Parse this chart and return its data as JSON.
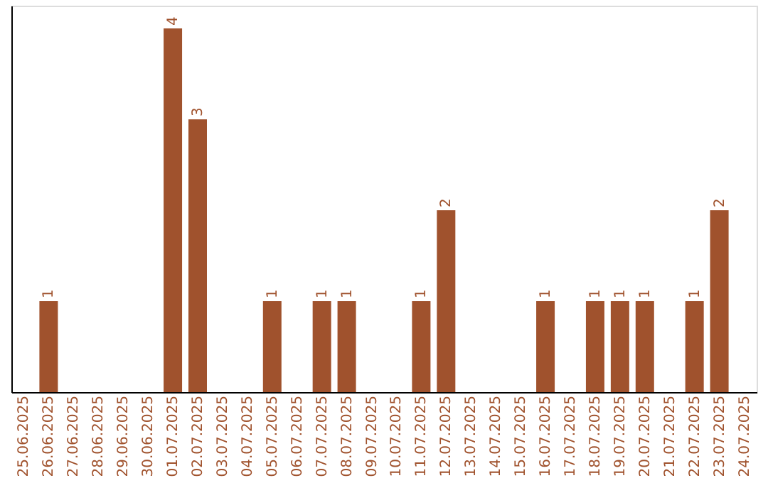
{
  "chart_data": {
    "type": "bar",
    "categories": [
      "25.06.2025",
      "26.06.2025",
      "27.06.2025",
      "28.06.2025",
      "29.06.2025",
      "30.06.2025",
      "01.07.2025",
      "02.07.2025",
      "03.07.2025",
      "04.07.2025",
      "05.07.2025",
      "06.07.2025",
      "07.07.2025",
      "08.07.2025",
      "09.07.2025",
      "10.07.2025",
      "11.07.2025",
      "12.07.2025",
      "13.07.2025",
      "14.07.2025",
      "15.07.2025",
      "16.07.2025",
      "17.07.2025",
      "18.07.2025",
      "19.07.2025",
      "20.07.2025",
      "21.07.2025",
      "22.07.2025",
      "23.07.2025",
      "24.07.2025"
    ],
    "values": [
      0,
      1,
      0,
      0,
      0,
      0,
      4,
      3,
      0,
      0,
      1,
      0,
      1,
      1,
      0,
      0,
      1,
      2,
      0,
      0,
      0,
      1,
      0,
      1,
      1,
      1,
      0,
      1,
      2,
      0
    ],
    "value_labels": [
      null,
      "1",
      null,
      null,
      null,
      null,
      "4",
      "3",
      null,
      null,
      "1",
      null,
      "1",
      "1",
      null,
      null,
      "1",
      "2",
      null,
      null,
      null,
      "1",
      null,
      "1",
      "1",
      "1",
      null,
      "1",
      "2",
      null
    ],
    "color": "#a0522d",
    "ylim": [
      0,
      4.25
    ],
    "tick_labels": "x",
    "grid": false
  }
}
